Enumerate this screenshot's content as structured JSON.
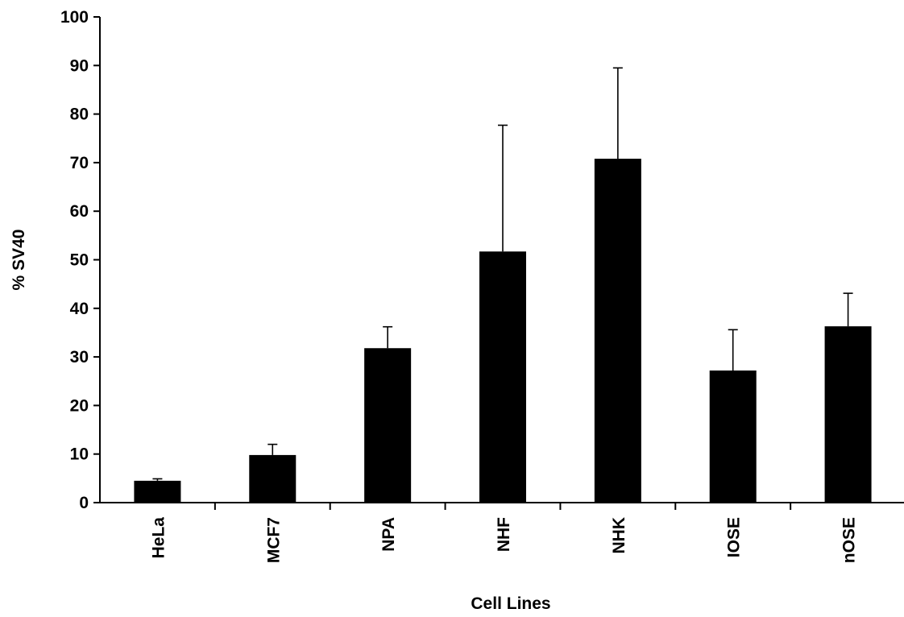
{
  "chart_data": {
    "type": "bar",
    "categories": [
      "HeLa",
      "MCF7",
      "NPA",
      "NHF",
      "NHK",
      "IOSE",
      "nOSE"
    ],
    "series": [
      {
        "values": [
          4.5,
          9.8,
          31.8,
          51.7,
          70.8,
          27.2,
          36.3
        ],
        "error_upper": [
          0.4,
          2.2,
          4.4,
          26.0,
          18.7,
          8.4,
          6.8
        ]
      }
    ],
    "title": "",
    "xlabel": "Cell Lines",
    "ylabel": "% SV40",
    "ylim": [
      0,
      100
    ],
    "yticks": [
      0,
      10,
      20,
      30,
      40,
      50,
      60,
      70,
      80,
      90,
      100
    ],
    "grid": false,
    "legend": "none",
    "bar_color": "#000000",
    "background": "#ffffff"
  }
}
